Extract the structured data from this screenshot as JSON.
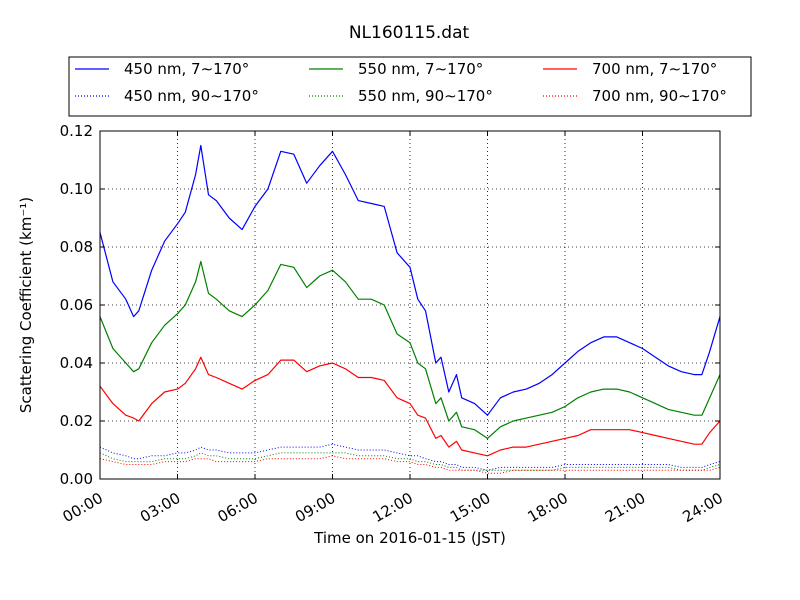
{
  "chart_data": {
    "type": "line",
    "title": "NL160115.dat",
    "xlabel": "Time on 2016-01-15 (JST)",
    "ylabel": "Scattering Coefficient (km⁻¹)",
    "x_unit": "hours",
    "xlim": [
      0,
      24
    ],
    "ylim": [
      0,
      0.12
    ],
    "x_ticks": [
      0,
      3,
      6,
      9,
      12,
      15,
      18,
      21,
      24
    ],
    "x_tick_labels": [
      "00:00",
      "03:00",
      "06:00",
      "09:00",
      "12:00",
      "15:00",
      "18:00",
      "21:00",
      "24:00"
    ],
    "y_ticks": [
      0,
      0.02,
      0.04,
      0.06,
      0.08,
      0.1,
      0.12
    ],
    "y_tick_labels": [
      "0.00",
      "0.02",
      "0.04",
      "0.06",
      "0.08",
      "0.10",
      "0.12"
    ],
    "grid": true,
    "legend_position": "top",
    "x": [
      0,
      0.5,
      1,
      1.3,
      1.5,
      2,
      2.5,
      3,
      3.3,
      3.7,
      3.9,
      4.2,
      4.5,
      5,
      5.5,
      6,
      6.5,
      7,
      7.5,
      8,
      8.5,
      9,
      9.5,
      10,
      10.5,
      11,
      11.5,
      12,
      12.3,
      12.6,
      13,
      13.2,
      13.5,
      13.8,
      14,
      14.5,
      15,
      15.5,
      16,
      16.5,
      17,
      17.5,
      18,
      18.5,
      19,
      19.5,
      20,
      20.5,
      21,
      21.5,
      22,
      22.5,
      23,
      23.3,
      23.6,
      24
    ],
    "series": [
      {
        "name": "450 nm, 7∼170°",
        "color": "#0000ff",
        "style": "solid",
        "values": [
          0.085,
          0.068,
          0.062,
          0.056,
          0.058,
          0.072,
          0.082,
          0.088,
          0.092,
          0.105,
          0.115,
          0.098,
          0.096,
          0.09,
          0.086,
          0.094,
          0.1,
          0.113,
          0.112,
          0.102,
          0.108,
          0.113,
          0.105,
          0.096,
          0.095,
          0.094,
          0.078,
          0.073,
          0.062,
          0.058,
          0.04,
          0.042,
          0.03,
          0.036,
          0.028,
          0.026,
          0.022,
          0.028,
          0.03,
          0.031,
          0.033,
          0.036,
          0.04,
          0.044,
          0.047,
          0.049,
          0.049,
          0.047,
          0.045,
          0.042,
          0.039,
          0.037,
          0.036,
          0.036,
          0.044,
          0.056
        ]
      },
      {
        "name": "450 nm, 90∼170°",
        "color": "#0000ff",
        "style": "dotted",
        "values": [
          0.011,
          0.009,
          0.008,
          0.007,
          0.007,
          0.008,
          0.008,
          0.009,
          0.009,
          0.01,
          0.011,
          0.01,
          0.01,
          0.009,
          0.009,
          0.009,
          0.01,
          0.011,
          0.011,
          0.011,
          0.011,
          0.012,
          0.011,
          0.01,
          0.01,
          0.01,
          0.009,
          0.008,
          0.008,
          0.007,
          0.006,
          0.006,
          0.005,
          0.005,
          0.004,
          0.004,
          0.003,
          0.004,
          0.004,
          0.004,
          0.004,
          0.004,
          0.005,
          0.005,
          0.005,
          0.005,
          0.005,
          0.005,
          0.005,
          0.005,
          0.005,
          0.004,
          0.004,
          0.004,
          0.005,
          0.006
        ]
      },
      {
        "name": "550 nm, 7∼170°",
        "color": "#008000",
        "style": "solid",
        "values": [
          0.056,
          0.045,
          0.04,
          0.037,
          0.038,
          0.047,
          0.053,
          0.057,
          0.06,
          0.068,
          0.075,
          0.064,
          0.062,
          0.058,
          0.056,
          0.06,
          0.065,
          0.074,
          0.073,
          0.066,
          0.07,
          0.072,
          0.068,
          0.062,
          0.062,
          0.06,
          0.05,
          0.047,
          0.04,
          0.038,
          0.026,
          0.028,
          0.02,
          0.023,
          0.018,
          0.017,
          0.014,
          0.018,
          0.02,
          0.021,
          0.022,
          0.023,
          0.025,
          0.028,
          0.03,
          0.031,
          0.031,
          0.03,
          0.028,
          0.026,
          0.024,
          0.023,
          0.022,
          0.022,
          0.028,
          0.036
        ]
      },
      {
        "name": "550 nm, 90∼170°",
        "color": "#008000",
        "style": "dotted",
        "values": [
          0.009,
          0.007,
          0.006,
          0.006,
          0.006,
          0.006,
          0.007,
          0.007,
          0.007,
          0.008,
          0.009,
          0.008,
          0.008,
          0.007,
          0.007,
          0.007,
          0.008,
          0.009,
          0.009,
          0.009,
          0.009,
          0.009,
          0.009,
          0.008,
          0.008,
          0.008,
          0.007,
          0.007,
          0.006,
          0.006,
          0.005,
          0.005,
          0.004,
          0.004,
          0.003,
          0.003,
          0.003,
          0.003,
          0.003,
          0.003,
          0.003,
          0.003,
          0.004,
          0.004,
          0.004,
          0.004,
          0.004,
          0.004,
          0.004,
          0.004,
          0.004,
          0.003,
          0.003,
          0.003,
          0.004,
          0.005
        ]
      },
      {
        "name": "700 nm, 7∼170°",
        "color": "#ff0000",
        "style": "solid",
        "values": [
          0.032,
          0.026,
          0.022,
          0.021,
          0.02,
          0.026,
          0.03,
          0.031,
          0.033,
          0.038,
          0.042,
          0.036,
          0.035,
          0.033,
          0.031,
          0.034,
          0.036,
          0.041,
          0.041,
          0.037,
          0.039,
          0.04,
          0.038,
          0.035,
          0.035,
          0.034,
          0.028,
          0.026,
          0.022,
          0.021,
          0.014,
          0.015,
          0.011,
          0.013,
          0.01,
          0.009,
          0.008,
          0.01,
          0.011,
          0.011,
          0.012,
          0.013,
          0.014,
          0.015,
          0.017,
          0.017,
          0.017,
          0.017,
          0.016,
          0.015,
          0.014,
          0.013,
          0.012,
          0.012,
          0.016,
          0.02
        ]
      },
      {
        "name": "700 nm, 90∼170°",
        "color": "#ff0000",
        "style": "dotted",
        "values": [
          0.007,
          0.006,
          0.005,
          0.005,
          0.005,
          0.005,
          0.006,
          0.006,
          0.006,
          0.007,
          0.007,
          0.007,
          0.006,
          0.006,
          0.006,
          0.006,
          0.007,
          0.007,
          0.007,
          0.007,
          0.007,
          0.008,
          0.007,
          0.007,
          0.007,
          0.007,
          0.006,
          0.006,
          0.005,
          0.005,
          0.004,
          0.004,
          0.003,
          0.003,
          0.003,
          0.003,
          0.002,
          0.002,
          0.003,
          0.003,
          0.003,
          0.003,
          0.003,
          0.003,
          0.003,
          0.003,
          0.003,
          0.003,
          0.003,
          0.003,
          0.003,
          0.003,
          0.003,
          0.003,
          0.003,
          0.004
        ]
      }
    ]
  }
}
